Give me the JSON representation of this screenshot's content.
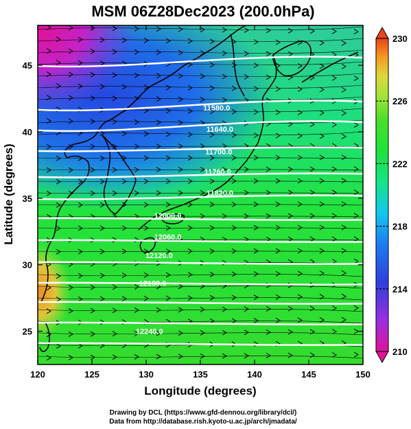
{
  "title": "MSM 06Z28Dec2023 (200.0hPa)",
  "map": {
    "xlabel": "Longitude (degrees)",
    "ylabel": "Latitude  (degrees)",
    "lon_range": [
      120,
      150
    ],
    "lat_range": [
      22.5,
      48
    ],
    "lon_ticks": [
      "120",
      "125",
      "130",
      "135",
      "140",
      "145",
      "150"
    ],
    "lat_ticks": [
      "25",
      "30",
      "35",
      "40",
      "45"
    ],
    "contour_labels": [
      {
        "text": "11580.0",
        "lon": 136.5,
        "lat": 41.6
      },
      {
        "text": "11640.0",
        "lon": 136.8,
        "lat": 40.0
      },
      {
        "text": "11700.0",
        "lon": 136.7,
        "lat": 38.3
      },
      {
        "text": "11760.0",
        "lon": 136.6,
        "lat": 36.8
      },
      {
        "text": "11820.0",
        "lon": 136.8,
        "lat": 35.2
      },
      {
        "text": "12000.0",
        "lon": 132.0,
        "lat": 33.5
      },
      {
        "text": "12060.0",
        "lon": 132.0,
        "lat": 31.9
      },
      {
        "text": "12120.0",
        "lon": 131.2,
        "lat": 30.5
      },
      {
        "text": "12180.0",
        "lon": 130.6,
        "lat": 28.4
      },
      {
        "text": "12240.0",
        "lon": 130.3,
        "lat": 24.8
      }
    ],
    "wind": "westerly"
  },
  "colorbar": {
    "min": 210,
    "max": 230,
    "tick_labels": [
      "230",
      "226",
      "222",
      "218",
      "214",
      "210"
    ],
    "colors": [
      "#e0139a",
      "#9a2ee0",
      "#2d3fdc",
      "#1c7bf0",
      "#12c6f0",
      "#15e48a",
      "#1ee23a",
      "#49e02a",
      "#a8e43a",
      "#dcd83a",
      "#f59a22",
      "#e84518"
    ]
  },
  "footer": {
    "line1": "Drawing by DCL (https://www.gfd-dennou.org/library/dcl/)",
    "line2": "Data from http://database.rish.kyoto-u.ac.jp/arch/jmadata/"
  }
}
